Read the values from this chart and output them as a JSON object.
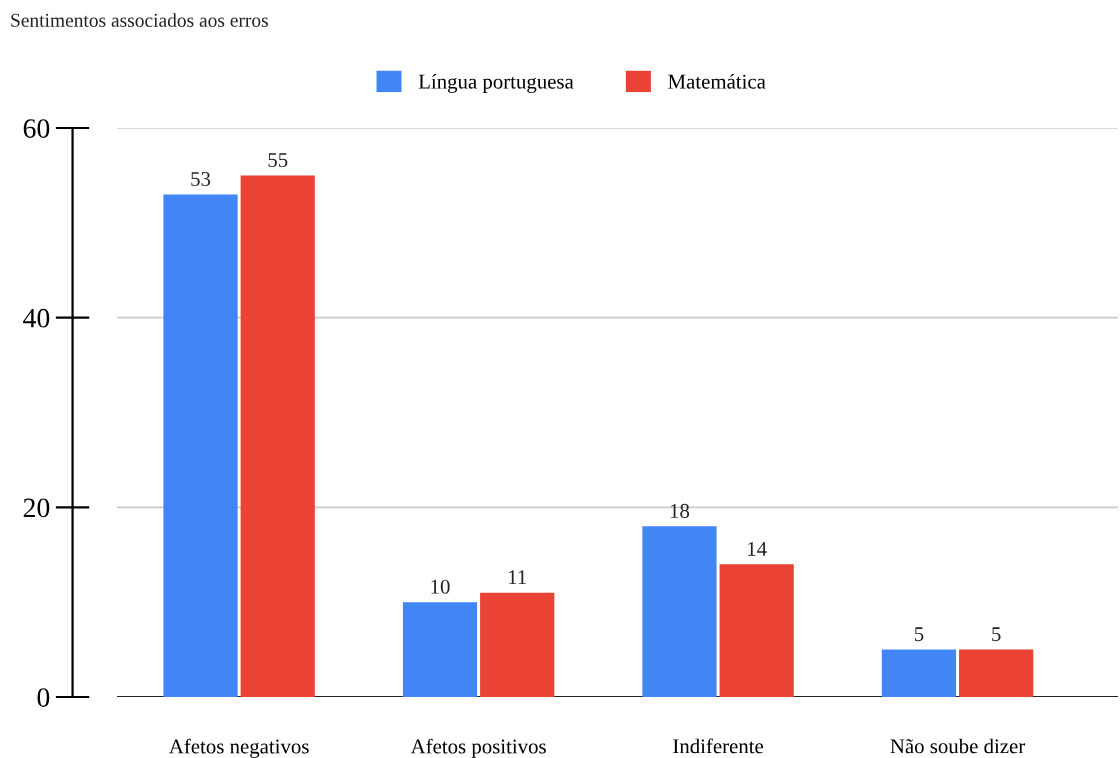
{
  "chart_data": {
    "type": "bar",
    "title": "Sentimentos associados aos erros",
    "categories": [
      "Afetos negativos",
      "Afetos positivos",
      "Indiferente",
      "Não soube dizer"
    ],
    "series": [
      {
        "name": "Língua portuguesa",
        "color": "#4285f4",
        "values": [
          53,
          10,
          18,
          5
        ]
      },
      {
        "name": "Matemática",
        "color": "#ea4335",
        "values": [
          55,
          11,
          14,
          5
        ]
      }
    ],
    "ylim": [
      0,
      60
    ],
    "yticks": [
      0,
      20,
      40,
      60
    ],
    "grid": "y",
    "legend": "top",
    "data_labels": true
  }
}
